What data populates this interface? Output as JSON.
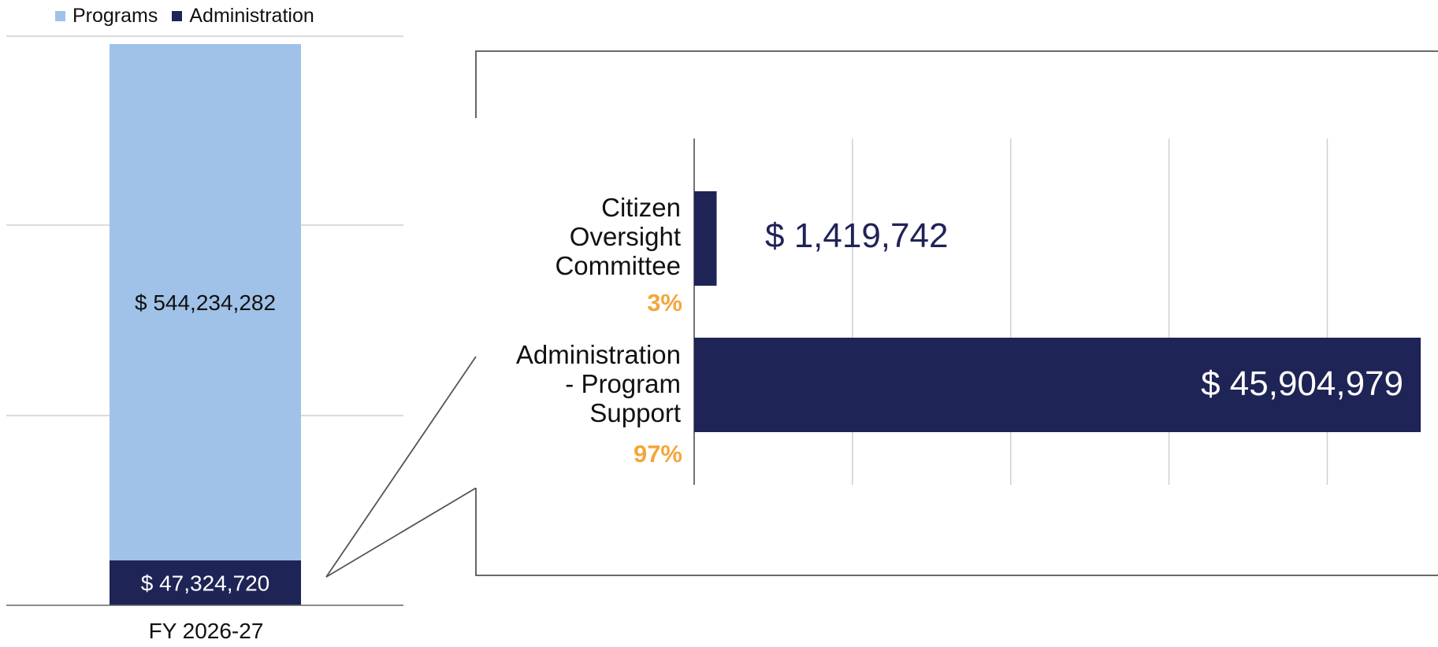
{
  "colors": {
    "programs": "#a0c2e8",
    "administration": "#1f2456",
    "percent": "#f4a63c",
    "grid": "#cfcfcf",
    "callout": "#555555"
  },
  "chart_data": [
    {
      "type": "bar",
      "stacked": true,
      "categories": [
        "FY 2026-27"
      ],
      "series": [
        {
          "name": "Programs",
          "values": [
            544234282
          ],
          "label": "$ 544,234,282"
        },
        {
          "name": "Administration",
          "values": [
            47324720
          ],
          "label": "$ 47,324,720"
        }
      ],
      "legend": "top-left",
      "grid": true
    },
    {
      "type": "bar",
      "orientation": "horizontal",
      "categories": [
        "Citizen Oversight Committee",
        "Administration - Program Support"
      ],
      "category_lines": [
        [
          "Citizen",
          "Oversight",
          "Committee"
        ],
        [
          "Administration",
          "- Program",
          "Support"
        ]
      ],
      "values": [
        1419742,
        45904979
      ],
      "value_labels": [
        "$ 1,419,742",
        "$ 45,904,979"
      ],
      "percent_labels": [
        "3%",
        "97%"
      ],
      "grid": true
    }
  ]
}
